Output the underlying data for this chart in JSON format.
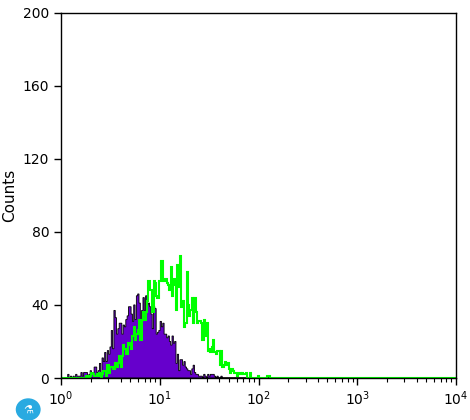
{
  "ylabel": "Counts",
  "ylim": [
    0,
    200
  ],
  "yticks": [
    0,
    40,
    80,
    120,
    160,
    200
  ],
  "xlim": [
    1,
    10000
  ],
  "background_color": "#ffffff",
  "purple_color": "#6600cc",
  "green_color": "#00ff00",
  "purple_alpha": 1.0,
  "purple_edge_color": "#000000",
  "purple_mean_log": 1.9,
  "purple_sigma": 0.55,
  "purple_n": 1800,
  "green_mean_log": 2.55,
  "green_sigma": 0.65,
  "green_n": 2800,
  "n_bins": 300,
  "seed": 12
}
